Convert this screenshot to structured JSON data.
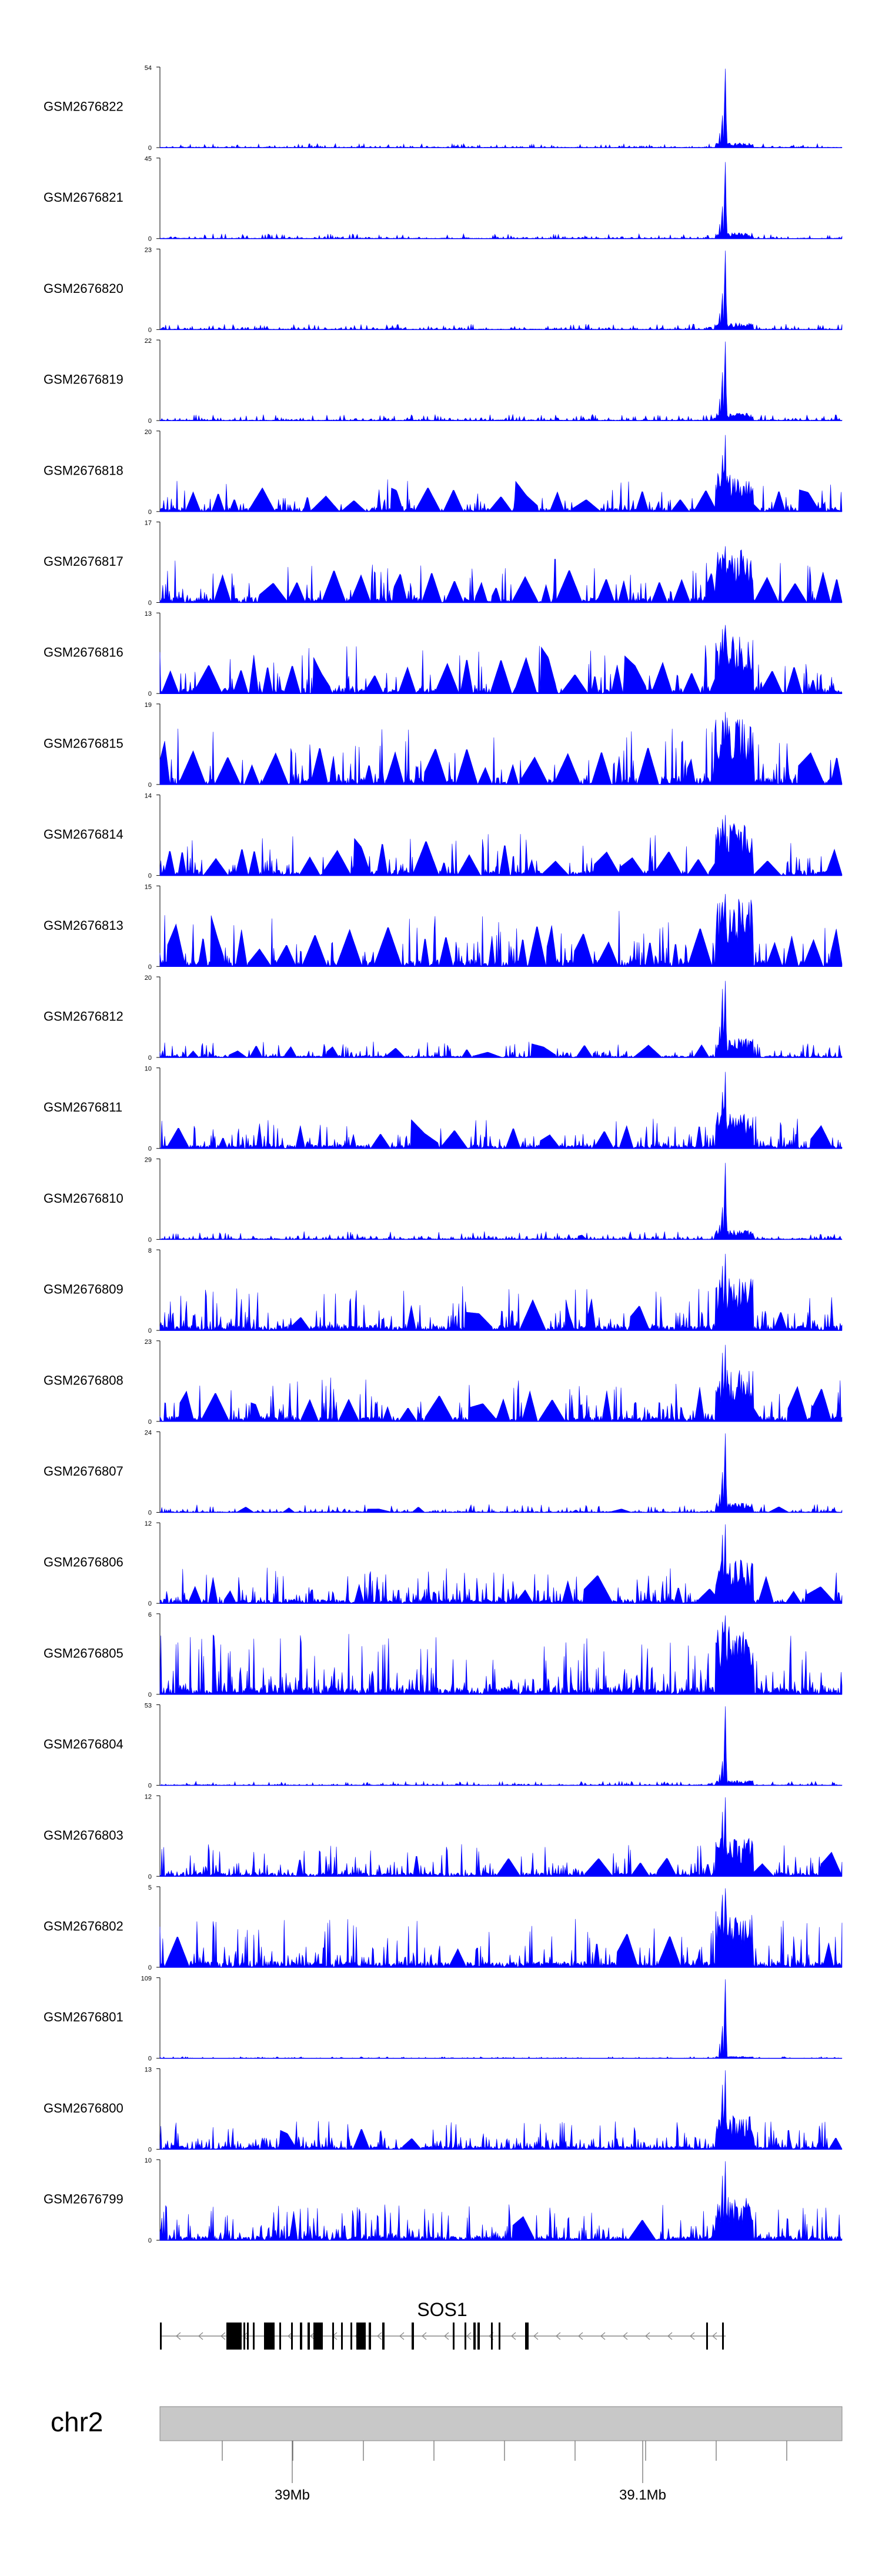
{
  "chart_data": {
    "type": "area",
    "series_color": "#0000ff",
    "tracks": [
      {
        "name": "GSM2676822",
        "ymax": "54",
        "ymin": "0",
        "peak_frac": 0.98,
        "peak2_frac": 0.4,
        "base_frac": 0.05,
        "sparse": 0.0
      },
      {
        "name": "GSM2676821",
        "ymax": "45",
        "ymin": "0",
        "peak_frac": 0.95,
        "peak2_frac": 0.4,
        "base_frac": 0.06,
        "sparse": 0.0
      },
      {
        "name": "GSM2676820",
        "ymax": "23",
        "ymin": "0",
        "peak_frac": 0.98,
        "peak2_frac": 0.45,
        "base_frac": 0.07,
        "sparse": 0.0
      },
      {
        "name": "GSM2676819",
        "ymax": "22",
        "ymin": "0",
        "peak_frac": 0.98,
        "peak2_frac": 0.6,
        "base_frac": 0.08,
        "sparse": 0.0
      },
      {
        "name": "GSM2676818",
        "ymax": "20",
        "ymin": "0",
        "peak_frac": 0.95,
        "peak2_frac": 0.7,
        "base_frac": 0.4,
        "sparse": 0.6
      },
      {
        "name": "GSM2676817",
        "ymax": "17",
        "ymin": "0",
        "peak_frac": 0.7,
        "peak2_frac": 0.6,
        "base_frac": 0.55,
        "sparse": 0.55
      },
      {
        "name": "GSM2676816",
        "ymax": "13",
        "ymin": "0",
        "peak_frac": 0.85,
        "peak2_frac": 0.8,
        "base_frac": 0.6,
        "sparse": 0.55
      },
      {
        "name": "GSM2676815",
        "ymax": "19",
        "ymin": "0",
        "peak_frac": 0.9,
        "peak2_frac": 0.8,
        "base_frac": 0.7,
        "sparse": 0.65
      },
      {
        "name": "GSM2676814",
        "ymax": "14",
        "ymin": "0",
        "peak_frac": 0.75,
        "peak2_frac": 0.7,
        "base_frac": 0.55,
        "sparse": 0.6
      },
      {
        "name": "GSM2676813",
        "ymax": "15",
        "ymin": "0",
        "peak_frac": 0.9,
        "peak2_frac": 0.8,
        "base_frac": 0.7,
        "sparse": 0.65
      },
      {
        "name": "GSM2676812",
        "ymax": "20",
        "ymin": "0",
        "peak_frac": 0.95,
        "peak2_frac": 0.85,
        "base_frac": 0.2,
        "sparse": 0.2
      },
      {
        "name": "GSM2676811",
        "ymax": "10",
        "ymin": "0",
        "peak_frac": 0.95,
        "peak2_frac": 0.7,
        "base_frac": 0.4,
        "sparse": 0.25
      },
      {
        "name": "GSM2676810",
        "ymax": "29",
        "ymin": "0",
        "peak_frac": 0.95,
        "peak2_frac": 0.4,
        "base_frac": 0.1,
        "sparse": 0.05
      },
      {
        "name": "GSM2676809",
        "ymax": "8",
        "ymin": "0",
        "peak_frac": 0.95,
        "peak2_frac": 0.8,
        "base_frac": 0.55,
        "sparse": 0.15
      },
      {
        "name": "GSM2676808",
        "ymax": "23",
        "ymin": "0",
        "peak_frac": 0.95,
        "peak2_frac": 0.85,
        "base_frac": 0.55,
        "sparse": 0.45
      },
      {
        "name": "GSM2676807",
        "ymax": "24",
        "ymin": "0",
        "peak_frac": 0.98,
        "peak2_frac": 0.5,
        "base_frac": 0.1,
        "sparse": 0.05
      },
      {
        "name": "GSM2676806",
        "ymax": "12",
        "ymin": "0",
        "peak_frac": 0.98,
        "peak2_frac": 0.85,
        "base_frac": 0.45,
        "sparse": 0.2
      },
      {
        "name": "GSM2676805",
        "ymax": "6",
        "ymin": "0",
        "peak_frac": 0.98,
        "peak2_frac": 0.9,
        "base_frac": 0.75,
        "sparse": 0.0
      },
      {
        "name": "GSM2676804",
        "ymax": "53",
        "ymin": "0",
        "peak_frac": 0.98,
        "peak2_frac": 0.3,
        "base_frac": 0.05,
        "sparse": 0.0
      },
      {
        "name": "GSM2676803",
        "ymax": "12",
        "ymin": "0",
        "peak_frac": 0.98,
        "peak2_frac": 0.8,
        "base_frac": 0.4,
        "sparse": 0.1
      },
      {
        "name": "GSM2676802",
        "ymax": "5",
        "ymin": "0",
        "peak_frac": 0.98,
        "peak2_frac": 0.9,
        "base_frac": 0.6,
        "sparse": 0.1
      },
      {
        "name": "GSM2676801",
        "ymax": "109",
        "ymin": "0",
        "peak_frac": 0.98,
        "peak2_frac": 0.4,
        "base_frac": 0.02,
        "sparse": 0.0
      },
      {
        "name": "GSM2676800",
        "ymax": "13",
        "ymin": "0",
        "peak_frac": 0.98,
        "peak2_frac": 0.8,
        "base_frac": 0.35,
        "sparse": 0.05
      },
      {
        "name": "GSM2676799",
        "ymax": "10",
        "ymin": "0",
        "peak_frac": 0.98,
        "peak2_frac": 0.8,
        "base_frac": 0.45,
        "sparse": 0.05
      }
    ],
    "gene": {
      "name": "SOS1",
      "strand": "-"
    },
    "chromosome": {
      "label": "chr2",
      "tick_labels": [
        "39Mb",
        "39.1Mb"
      ]
    }
  }
}
